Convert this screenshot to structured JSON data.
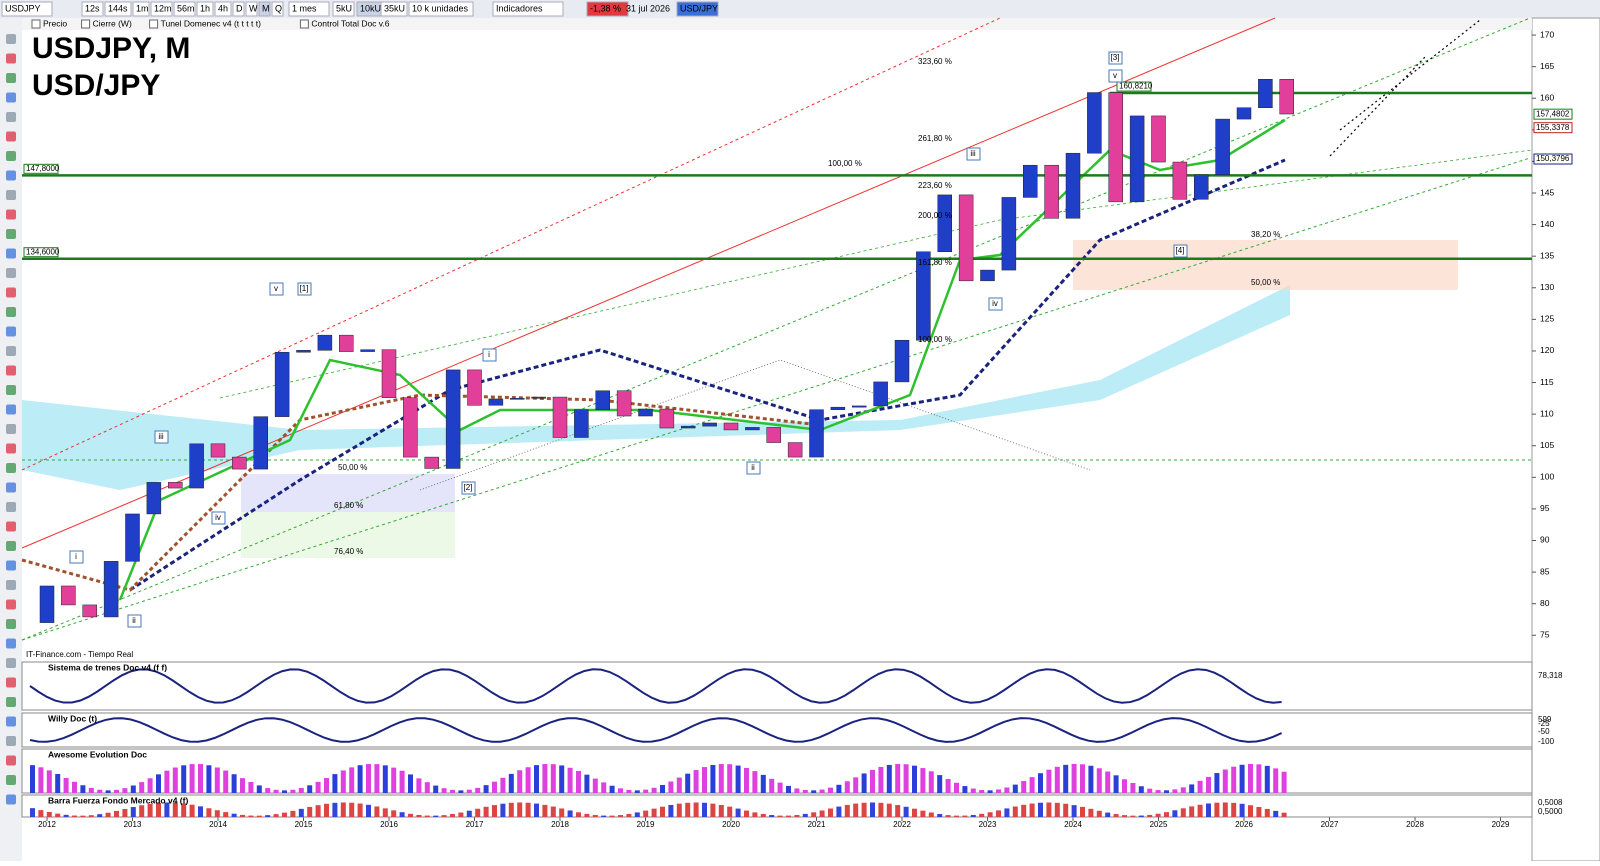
{
  "toolbar": {
    "symbol": "USDJPY",
    "intervals": [
      "12s",
      "144s",
      "1m",
      "12m",
      "56m",
      "1h",
      "4h",
      "D",
      "W",
      "M",
      "Q"
    ],
    "period": "1 mes",
    "units": [
      "5kU",
      "10kU",
      "35kU"
    ],
    "units_menu": "10 k unidades",
    "indicators": "Indicadores",
    "change": "-1,38 %",
    "date": "31 jul 2026",
    "ticker": "USD/JPY"
  },
  "legend_bar": [
    "Precio",
    "Cierre (W)",
    "Tunel Domenec v4 (t t t t t)",
    "Control Total Doc v.6"
  ],
  "chart_data": {
    "type": "candlestick",
    "title": "USDJPY, M",
    "subtitle": "USD/JPY",
    "source": "IT-Finance.com - Tiempo Real",
    "up_color": "#1f3fc8",
    "down_color": "#e23f9a",
    "x": [
      2011.75,
      2012.0,
      2012.25,
      2012.5,
      2012.75,
      2013.0,
      2013.25,
      2013.5,
      2013.75,
      2014.0,
      2014.25,
      2014.5,
      2014.75,
      2015.0,
      2015.25,
      2015.5,
      2015.75,
      2016.0,
      2016.25,
      2016.5,
      2016.75,
      2017.0,
      2017.25,
      2017.5,
      2017.75,
      2018.0,
      2018.25,
      2018.5,
      2018.75,
      2019.0,
      2019.25,
      2019.5,
      2019.75,
      2020.0,
      2020.25,
      2020.5,
      2020.75,
      2021.0,
      2021.25,
      2021.5,
      2021.75,
      2022.0,
      2022.25,
      2022.5,
      2022.75,
      2023.0,
      2023.25,
      2023.5,
      2023.75,
      2024.0,
      2024.25,
      2024.5,
      2024.75,
      2025.0,
      2025.25,
      2025.5,
      2025.75,
      2026.0,
      2026.25,
      2026.5
    ],
    "values": [
      77,
      82.8,
      79.8,
      77.9,
      86.7,
      94.2,
      99.2,
      98.3,
      105.3,
      103.2,
      101.3,
      109.6,
      119.8,
      120.1,
      122.5,
      119.9,
      120.2,
      112.6,
      103.2,
      101.4,
      117,
      111.4,
      112.4,
      112.5,
      112.7,
      106.3,
      110.7,
      113.7,
      109.7,
      110.8,
      107.8,
      108.1,
      108.6,
      107.5,
      107.9,
      105.5,
      103.2,
      110.7,
      111.1,
      111.3,
      115.1,
      121.7,
      135.7,
      144.7,
      131.1,
      132.8,
      144.3,
      149.4,
      141,
      151.3,
      160.9,
      143.6,
      157.2,
      149.9,
      144,
      147.9,
      156.7,
      158.5,
      163,
      157.5
    ],
    "xlim": [
      2011.7,
      2029.5
    ],
    "xticks": [
      2012,
      2013,
      2014,
      2015,
      2016,
      2017,
      2018,
      2019,
      2020,
      2021,
      2022,
      2023,
      2024,
      2025,
      2026,
      2027,
      2028,
      2029
    ],
    "ylim": [
      71.4,
      172.7
    ],
    "yticks": [
      75,
      80,
      85,
      90,
      95,
      100,
      105,
      110,
      115,
      120,
      125,
      130,
      135,
      140,
      145,
      150,
      155,
      160,
      165,
      170
    ],
    "levels": [
      {
        "value": 160.821,
        "label": "160,8210"
      },
      {
        "value": 147.8,
        "label": "147,8000"
      },
      {
        "value": 134.6,
        "label": "134,6000"
      }
    ],
    "price_labels": [
      {
        "value": 157.4802,
        "label": "157,4802"
      },
      {
        "value": 155.3378,
        "label": "155,3378"
      },
      {
        "value": 150.3796,
        "label": "150,3796"
      }
    ],
    "fib_labels": [
      "323,60 %",
      "261,80 %",
      "223,60 %",
      "200,00 %",
      "161,80 %",
      "100,00 %",
      "100,00 %",
      "38,20 %",
      "50,00 %",
      "50,00 %",
      "61,80 %",
      "76,40 %"
    ],
    "wave_labels": [
      "[3]",
      "v",
      "iii",
      "iv",
      "[4]",
      "v",
      "[1]",
      "i",
      "[2]",
      "iii",
      "iv",
      "i",
      "ii",
      "ii"
    ]
  },
  "panels": [
    "Sistema de trenes Doc v4 (f f)",
    "Willy Doc (t)",
    "Awesome Evolution Doc",
    "Barra Fuerza Fondo Mercado v4 (f)"
  ],
  "panel_values": [
    "78,318",
    "599",
    "-25",
    "-50",
    "-100",
    "0,5008",
    "0,5000"
  ]
}
